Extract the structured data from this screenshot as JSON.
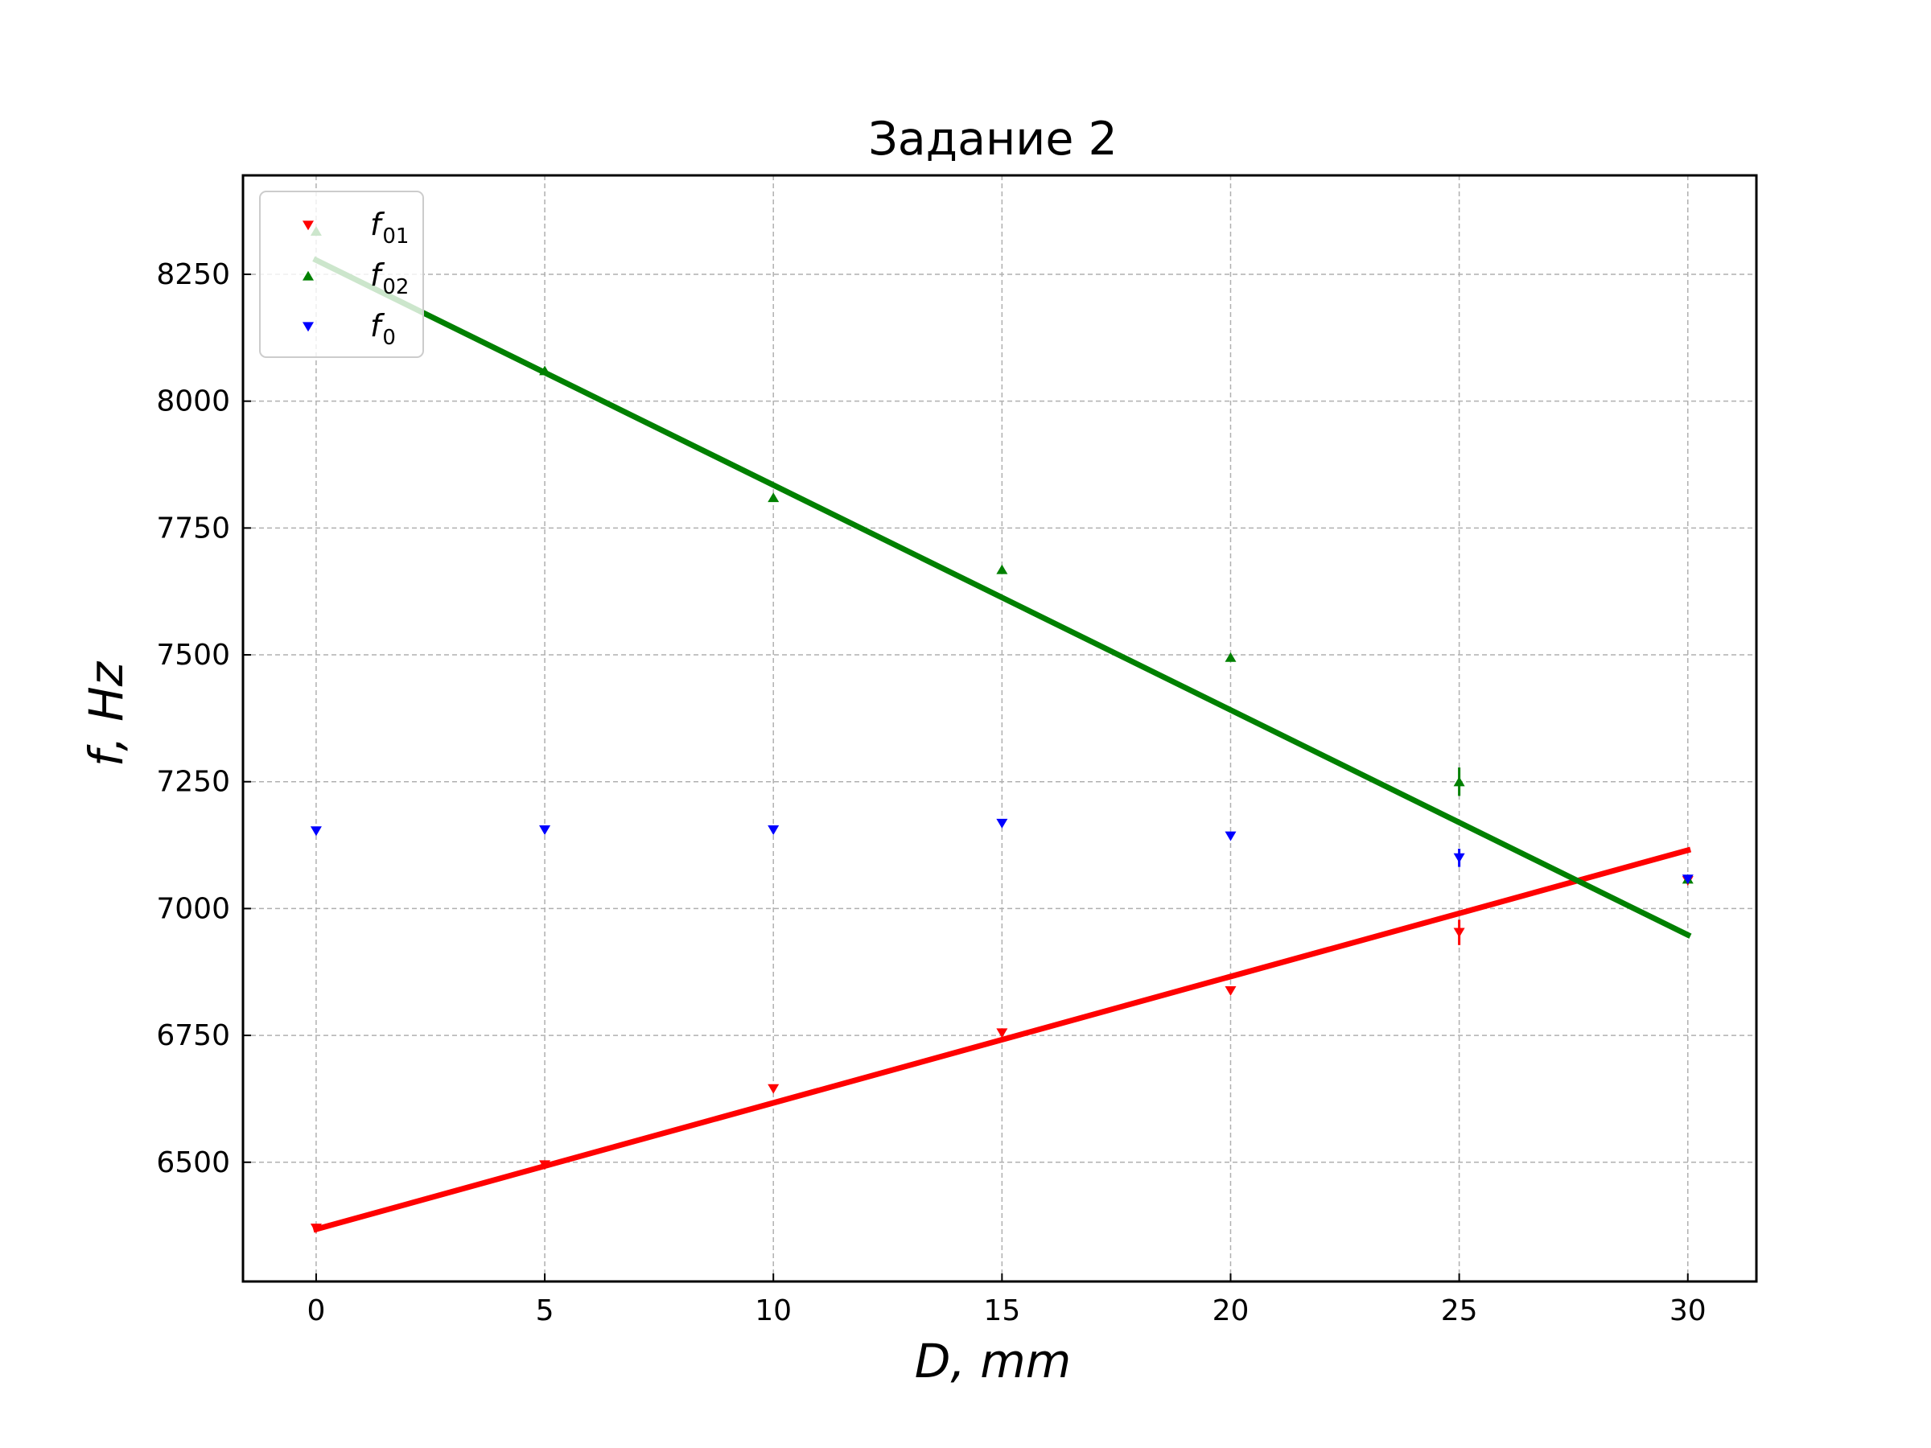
{
  "chart_data": {
    "type": "scatter",
    "title": "Задание 2",
    "xlabel": "D, mm",
    "ylabel": "f, Hz",
    "xlim": [
      -1.6,
      31.5
    ],
    "ylim": [
      6265,
      8445
    ],
    "xticks": [
      "0",
      "5",
      "10",
      "15",
      "20",
      "25",
      "30"
    ],
    "xtick_values": [
      0,
      5,
      10,
      15,
      20,
      25,
      30
    ],
    "yticks": [
      "6500",
      "6750",
      "7000",
      "7250",
      "7500",
      "7750",
      "8000",
      "8250"
    ],
    "ytick_values": [
      6500,
      6750,
      7000,
      7250,
      7500,
      7750,
      8000,
      8250
    ],
    "grid": true,
    "legend_position": "top-left",
    "series": [
      {
        "name": "f",
        "subscript": "01",
        "color": "#ff0000",
        "marker": "triangle-down",
        "x": [
          0,
          5,
          10,
          15,
          20,
          25,
          30
        ],
        "y": [
          6370,
          6495,
          6645,
          6755,
          6838,
          6953,
          7055
        ],
        "yerr": [
          0,
          0,
          0,
          0,
          0,
          25,
          0
        ],
        "fit": [
          [
            0,
            6368
          ],
          [
            30,
            7115
          ]
        ]
      },
      {
        "name": "f",
        "subscript": "02",
        "color": "#008000",
        "marker": "triangle-up",
        "x": [
          0,
          5,
          10,
          15,
          20,
          25,
          30
        ],
        "y": [
          8335,
          8060,
          7810,
          7668,
          7495,
          7250,
          7058
        ],
        "yerr": [
          0,
          0,
          0,
          0,
          0,
          28,
          0
        ],
        "fit": [
          [
            0,
            8278
          ],
          [
            30,
            6948
          ]
        ]
      },
      {
        "name": "f",
        "subscript": "0",
        "color": "#0000ff",
        "marker": "triangle-down",
        "x": [
          0,
          5,
          10,
          15,
          20,
          25,
          30
        ],
        "y": [
          7153,
          7155,
          7155,
          7168,
          7143,
          7100,
          7058
        ],
        "yerr": [
          0,
          0,
          0,
          0,
          0,
          18,
          0
        ],
        "fit": null
      }
    ]
  }
}
